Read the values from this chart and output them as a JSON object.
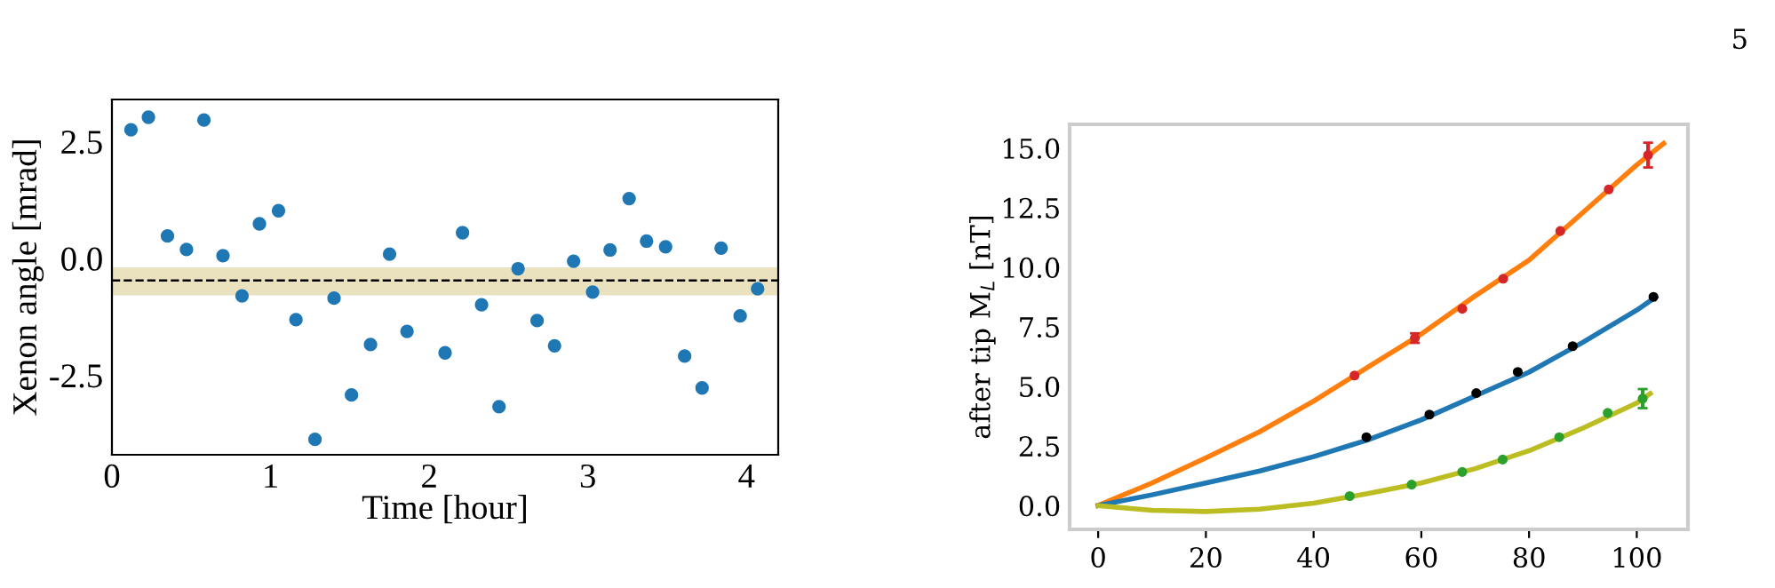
{
  "chart_data": [
    {
      "type": "scatter",
      "xlabel": "Time [hour]",
      "ylabel": "Xenon angle [mrad]",
      "xlim": [
        0,
        4.2
      ],
      "ylim": [
        -4.2,
        3.4
      ],
      "xticks": [
        0,
        1,
        2,
        3,
        4
      ],
      "yticks": [
        {
          "value": -2.5,
          "label": "-2.5"
        },
        {
          "value": 0,
          "label": "0.0"
        },
        {
          "value": 2.5,
          "label": "2.5"
        }
      ],
      "marker": "circle",
      "series": [
        {
          "color": "#1f77b4",
          "x": [
            0.12,
            0.23,
            0.35,
            0.47,
            0.58,
            0.7,
            0.82,
            0.93,
            1.05,
            1.16,
            1.28,
            1.4,
            1.51,
            1.63,
            1.75,
            1.86,
            2.1,
            2.21,
            2.33,
            2.44,
            2.56,
            2.68,
            2.79,
            2.91,
            3.03,
            3.14,
            3.26,
            3.37,
            3.49,
            3.61,
            3.72,
            3.84,
            3.96,
            4.07
          ],
          "values": [
            2.75,
            3.02,
            0.48,
            0.19,
            2.96,
            0.06,
            -0.8,
            0.74,
            1.02,
            -1.31,
            -3.87,
            -0.85,
            -2.92,
            -1.84,
            0.09,
            -1.56,
            -2.02,
            0.55,
            -0.99,
            -3.17,
            -0.22,
            -1.33,
            -1.87,
            -0.06,
            -0.72,
            0.18,
            1.28,
            0.37,
            0.25,
            -2.09,
            -2.77,
            0.22,
            -1.23,
            -0.65
          ]
        }
      ],
      "ref_lines": [
        {
          "axis": "y",
          "value": -0.47,
          "color": "#000000",
          "line_style": "dashed"
        }
      ],
      "bands": [
        {
          "axis": "y",
          "from": -0.79,
          "to": -0.19,
          "color": "#e6dcb4"
        }
      ]
    },
    {
      "type": "line",
      "ylabel": "after tip M$_{L}$ [nT]",
      "xlim": [
        -5.3,
        109.5
      ],
      "ylim": [
        -1,
        16
      ],
      "xticks": [
        0,
        20,
        40,
        60,
        80,
        100
      ],
      "yticks": [
        {
          "value": 0,
          "label": "0.0"
        },
        {
          "value": 2.5,
          "label": "2.5"
        },
        {
          "value": 5,
          "label": "5.0"
        },
        {
          "value": 7.5,
          "label": "7.5"
        },
        {
          "value": 10,
          "label": "10.0"
        },
        {
          "value": 12.5,
          "label": "12.5"
        },
        {
          "value": 15,
          "label": "15.0"
        }
      ],
      "line_style": "solid",
      "marker": "none",
      "annotations": [
        "5"
      ],
      "series": [
        {
          "type": "line",
          "color": "#ff7f0e",
          "x": [
            0,
            10,
            20,
            30,
            40,
            50,
            60,
            70,
            80,
            90,
            100,
            105
          ],
          "values": [
            0,
            0.95,
            2.0,
            3.1,
            4.38,
            5.8,
            7.2,
            8.8,
            10.3,
            12.3,
            14.3,
            15.2
          ]
        },
        {
          "type": "line",
          "color": "#1f77b4",
          "x": [
            0,
            10,
            20,
            30,
            40,
            50,
            60,
            70,
            80,
            90,
            100,
            103.5
          ],
          "values": [
            0,
            0.45,
            0.95,
            1.45,
            2.05,
            2.75,
            3.6,
            4.6,
            5.6,
            6.85,
            8.2,
            8.75
          ]
        },
        {
          "type": "line",
          "color": "#bcbd22",
          "x": [
            0,
            10,
            20,
            30,
            40,
            50,
            60,
            70,
            80,
            90,
            100,
            102.5
          ],
          "values": [
            0,
            -0.2,
            -0.25,
            -0.15,
            0.1,
            0.5,
            0.95,
            1.55,
            2.3,
            3.25,
            4.3,
            4.7
          ]
        },
        {
          "type": "scatter",
          "marker": "circle",
          "color": "#d62728",
          "x": [
            47.6,
            58.8,
            67.6,
            75.2,
            85.8,
            94.8,
            102.1
          ],
          "values": [
            5.46,
            7.03,
            8.26,
            9.52,
            11.52,
            13.27,
            14.71
          ],
          "errors": [
            null,
            0.2,
            null,
            null,
            null,
            null,
            0.52
          ]
        },
        {
          "type": "scatter",
          "marker": "circle",
          "color": "#000000",
          "x": [
            49.8,
            61.5,
            70.2,
            77.9,
            88.1,
            103.1
          ],
          "values": [
            2.87,
            3.82,
            4.72,
            5.61,
            6.69,
            8.76
          ]
        },
        {
          "type": "scatter",
          "marker": "circle",
          "color": "#2ca02c",
          "x": [
            46.7,
            58.2,
            67.6,
            75.1,
            85.6,
            94.6,
            101.1
          ],
          "values": [
            0.4,
            0.88,
            1.41,
            1.93,
            2.87,
            3.89,
            4.49
          ],
          "errors": [
            null,
            null,
            null,
            null,
            null,
            null,
            0.4
          ]
        }
      ]
    }
  ]
}
